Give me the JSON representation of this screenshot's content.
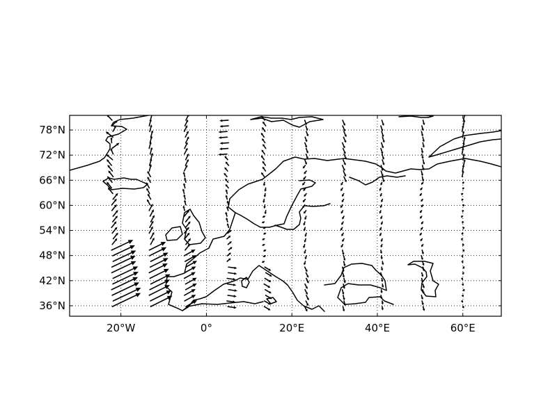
{
  "chart_data": {
    "type": "vector-map",
    "title": "",
    "projection": "equirectangular",
    "lon_range": [
      -32,
      69
    ],
    "lat_range": [
      33.5,
      81.5
    ],
    "grid": true,
    "grid_style": "dotted",
    "x_ticks": [
      {
        "value": -20,
        "label": "20°W"
      },
      {
        "value": 0,
        "label": "0°"
      },
      {
        "value": 20,
        "label": "20°E"
      },
      {
        "value": 40,
        "label": "40°E"
      },
      {
        "value": 60,
        "label": "60°E"
      }
    ],
    "y_ticks": [
      {
        "value": 36,
        "label": "36°N"
      },
      {
        "value": 42,
        "label": "42°N"
      },
      {
        "value": 48,
        "label": "48°N"
      },
      {
        "value": 54,
        "label": "54°N"
      },
      {
        "value": 60,
        "label": "60°N"
      },
      {
        "value": 66,
        "label": "66°N"
      },
      {
        "value": 72,
        "label": "72°N"
      },
      {
        "value": 78,
        "label": "78°N"
      }
    ],
    "vector_columns": [
      {
        "x0": -22,
        "dx": 0.3,
        "dy": 0.6,
        "note": "left column, strong NE arrows in south, mixed in north"
      },
      {
        "x0": -13.2,
        "dx": 0.3,
        "dy": 0.55
      },
      {
        "x0": -5,
        "dx": 0.3,
        "dy": 0.5
      },
      {
        "x0": 5,
        "dx": 0.2,
        "dy": 0.45
      },
      {
        "x0": 13.7,
        "dx": 0.2,
        "dy": 0.4
      },
      {
        "x0": 23.2,
        "dx": 0.15,
        "dy": 0.35
      },
      {
        "x0": 32,
        "dx": 0.15,
        "dy": 0.3
      },
      {
        "x0": 41,
        "dx": 0.12,
        "dy": 0.3
      },
      {
        "x0": 50.5,
        "dx": 0.1,
        "dy": 0.25
      },
      {
        "x0": 60,
        "dx": 0.1,
        "dy": 0.2
      }
    ],
    "colors": {
      "frame": "#000000",
      "coast": "#000000",
      "grid": "#000000",
      "arrow": "#000000",
      "background": "#ffffff"
    }
  }
}
